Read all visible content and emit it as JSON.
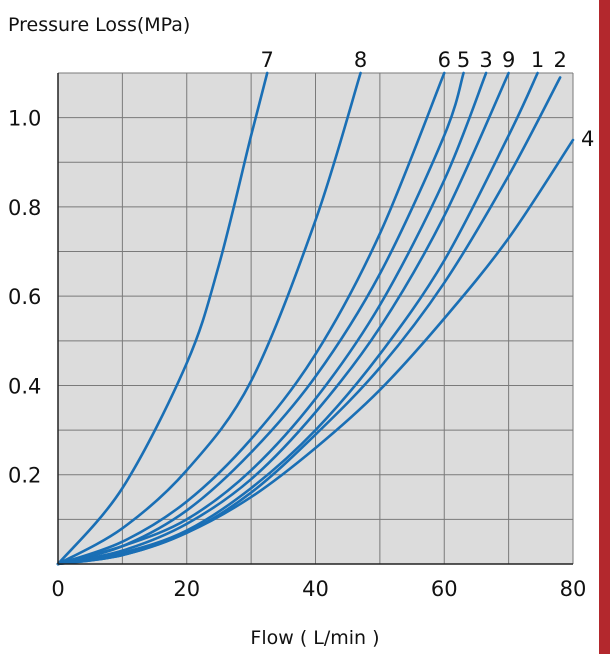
{
  "chart_data": {
    "type": "line",
    "title": "",
    "ylabel": "Pressure Loss(MPa)",
    "xlabel": "Flow ( L/min )",
    "xlim": [
      0,
      80
    ],
    "ylim": [
      0,
      1.1
    ],
    "x_ticks": [
      {
        "value": 0,
        "label": "0"
      },
      {
        "value": 20,
        "label": "20"
      },
      {
        "value": 40,
        "label": "40"
      },
      {
        "value": 60,
        "label": "60"
      },
      {
        "value": 80,
        "label": "80"
      }
    ],
    "y_ticks": [
      {
        "value": 0.2,
        "label": "0.2"
      },
      {
        "value": 0.4,
        "label": "0.4"
      },
      {
        "value": 0.6,
        "label": "0.6"
      },
      {
        "value": 0.8,
        "label": "0.8"
      },
      {
        "value": 1.0,
        "label": "1.0"
      }
    ],
    "grid": true,
    "grid_x_step": 10,
    "grid_y_step": 0.1,
    "colors": {
      "line": "#1a6fb5",
      "plot_bg": "#dcdcdc",
      "grid": "#7a7a7a",
      "accent_bar": "#b3282d"
    },
    "series": [
      {
        "name": "7",
        "x": [
          0,
          10,
          20,
          25,
          30,
          32.5
        ],
        "y": [
          0,
          0.17,
          0.45,
          0.67,
          0.96,
          1.1
        ]
      },
      {
        "name": "8",
        "x": [
          0,
          10,
          20,
          30,
          40,
          47
        ],
        "y": [
          0,
          0.08,
          0.21,
          0.41,
          0.77,
          1.1
        ]
      },
      {
        "name": "6",
        "x": [
          0,
          10,
          20,
          30,
          40,
          50,
          60
        ],
        "y": [
          0,
          0.05,
          0.14,
          0.28,
          0.47,
          0.74,
          1.1
        ]
      },
      {
        "name": "5",
        "x": [
          0,
          10,
          20,
          30,
          40,
          50,
          60,
          63
        ],
        "y": [
          0,
          0.04,
          0.12,
          0.25,
          0.42,
          0.65,
          0.96,
          1.1
        ]
      },
      {
        "name": "3",
        "x": [
          0,
          10,
          20,
          30,
          40,
          50,
          60,
          66.5
        ],
        "y": [
          0,
          0.04,
          0.1,
          0.21,
          0.37,
          0.58,
          0.86,
          1.1
        ]
      },
      {
        "name": "9",
        "x": [
          0,
          10,
          20,
          30,
          40,
          50,
          60,
          70
        ],
        "y": [
          0,
          0.03,
          0.09,
          0.19,
          0.34,
          0.53,
          0.78,
          1.1
        ]
      },
      {
        "name": "1",
        "x": [
          0,
          10,
          20,
          30,
          40,
          50,
          60,
          70,
          74.5
        ],
        "y": [
          0,
          0.025,
          0.075,
          0.17,
          0.3,
          0.47,
          0.68,
          0.96,
          1.1
        ]
      },
      {
        "name": "2",
        "x": [
          0,
          10,
          20,
          30,
          40,
          50,
          60,
          70,
          78
        ],
        "y": [
          0,
          0.02,
          0.07,
          0.16,
          0.29,
          0.44,
          0.63,
          0.87,
          1.09
        ]
      },
      {
        "name": "4",
        "x": [
          0,
          10,
          20,
          30,
          40,
          50,
          60,
          70,
          80
        ],
        "y": [
          0,
          0.02,
          0.07,
          0.15,
          0.26,
          0.39,
          0.55,
          0.73,
          0.95
        ]
      }
    ]
  }
}
